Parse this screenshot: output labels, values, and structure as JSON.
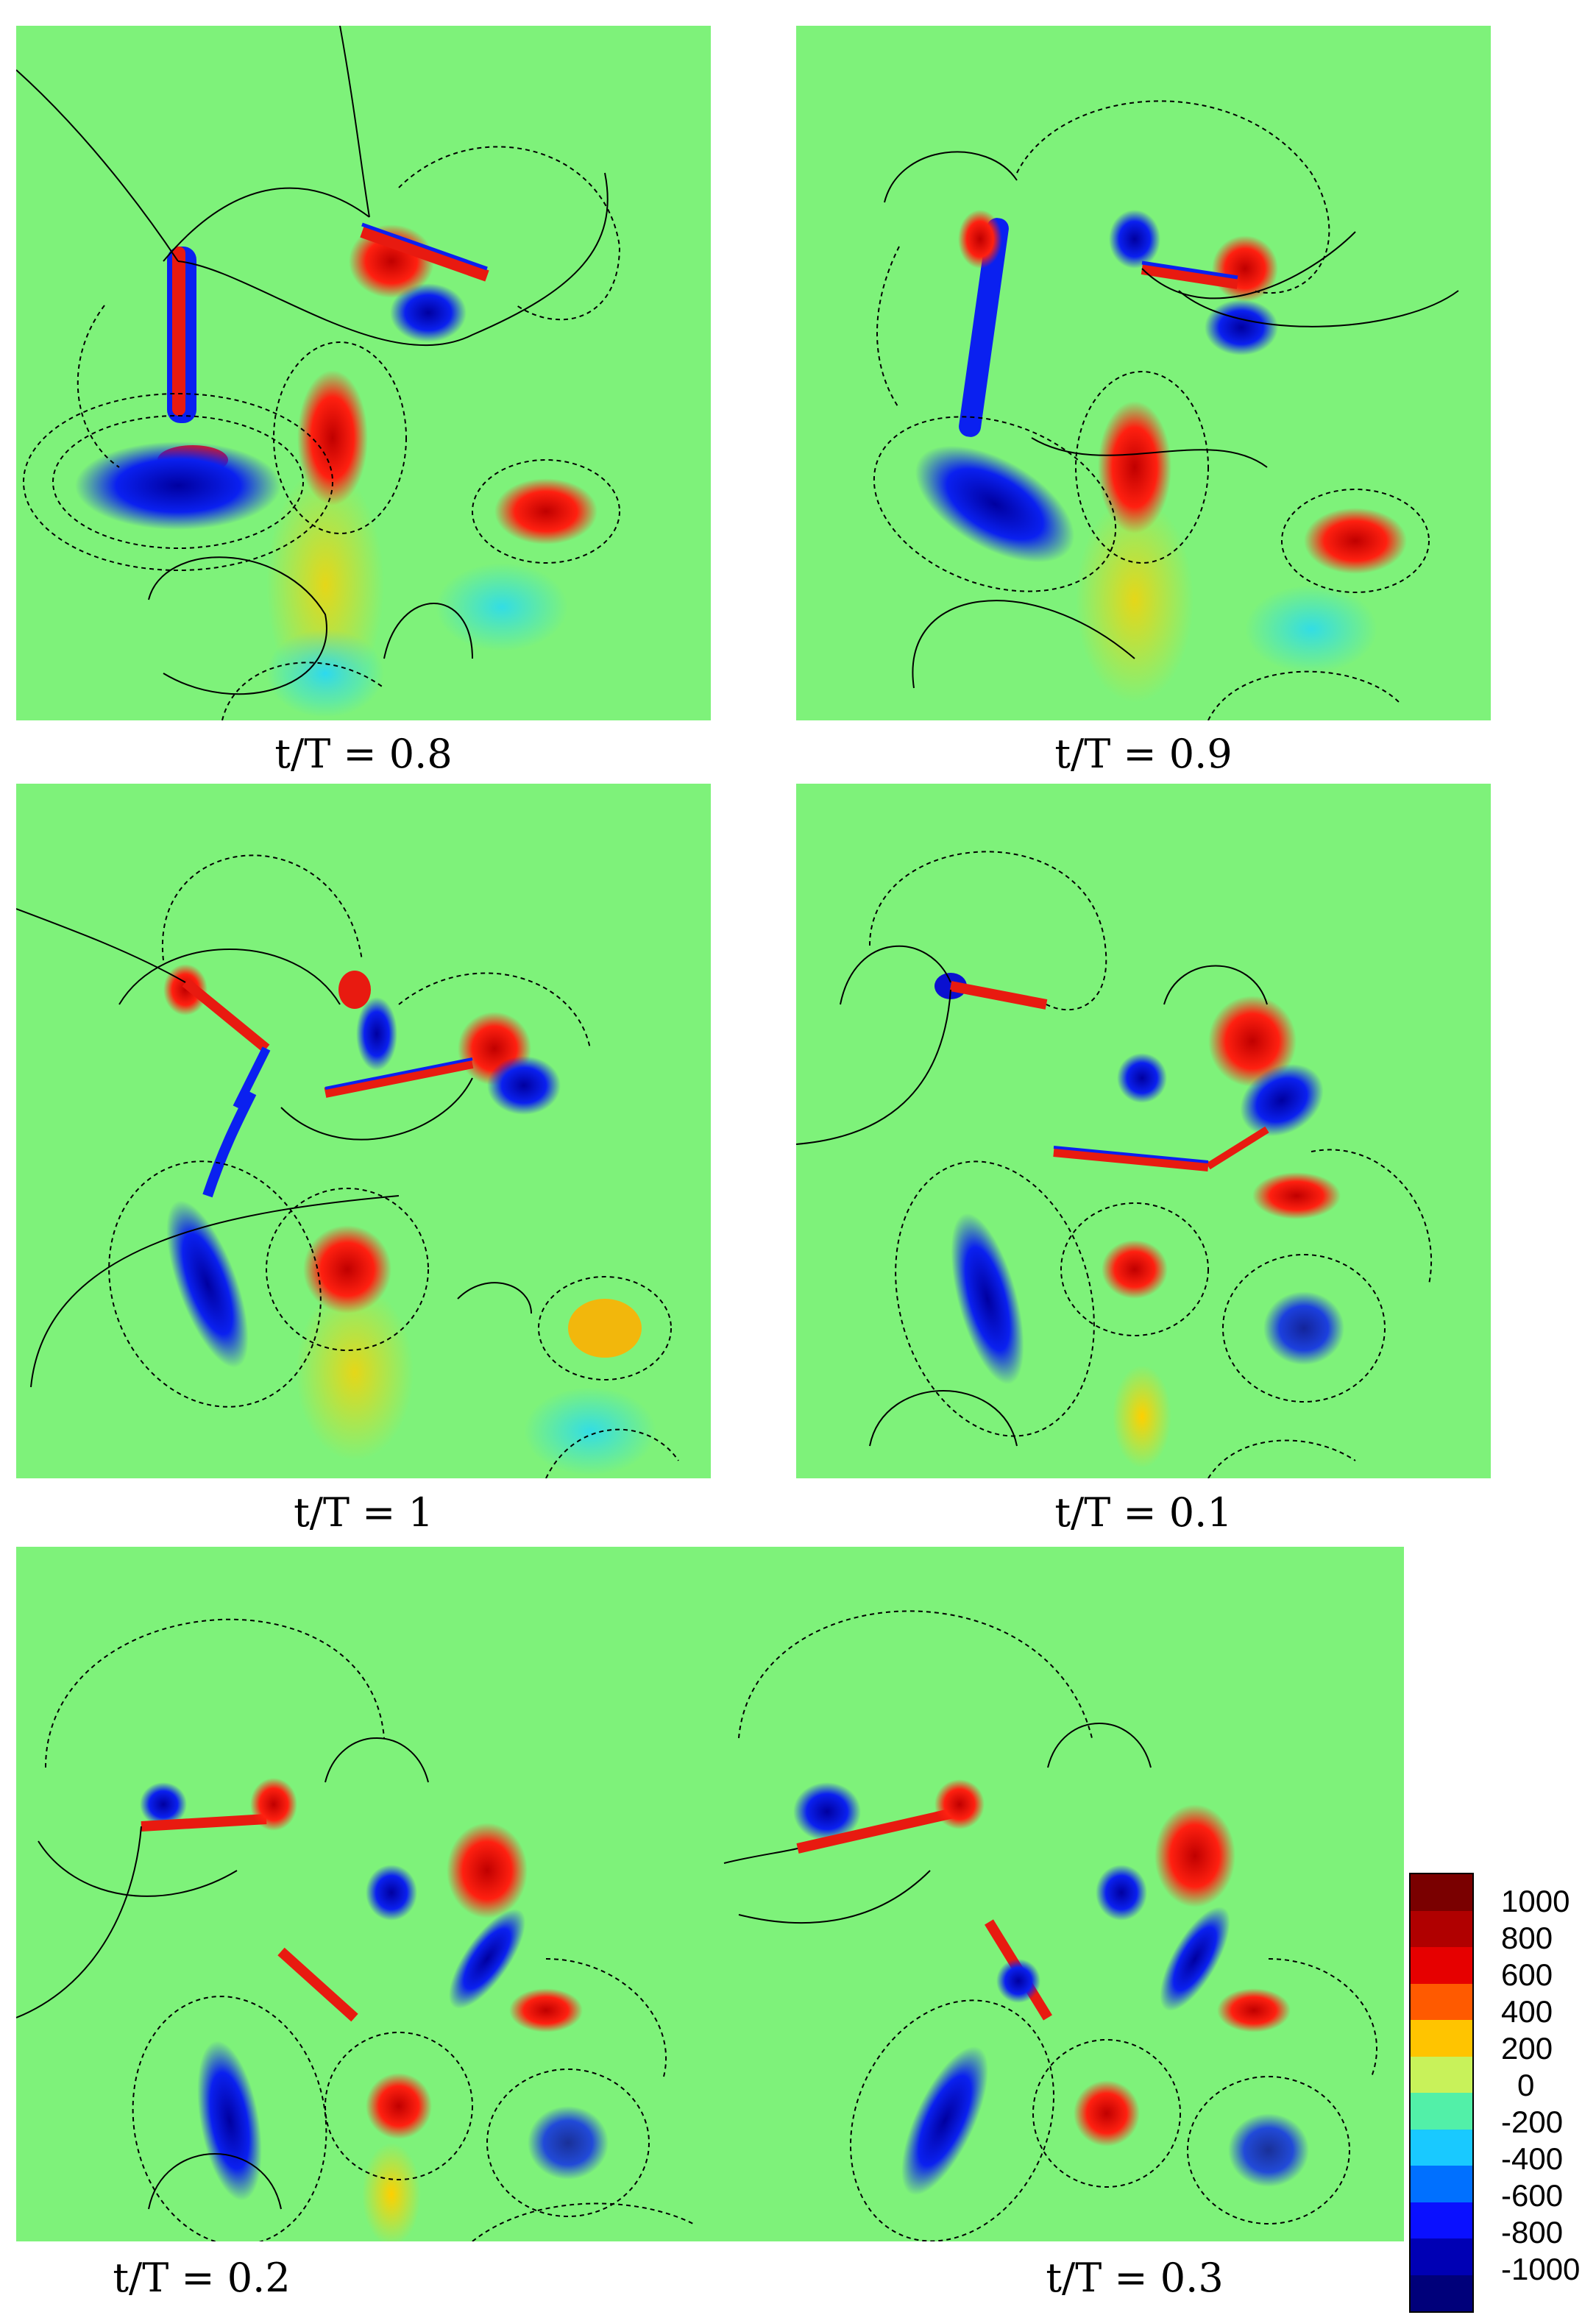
{
  "panels": [
    {
      "id": "p1",
      "caption": "t/T = 0.8"
    },
    {
      "id": "p2",
      "caption": "t/T = 0.9"
    },
    {
      "id": "p3",
      "caption": "t/T = 1"
    },
    {
      "id": "p4",
      "caption": "t/T = 0.1"
    },
    {
      "id": "p5",
      "caption": "t/T = 0.2"
    },
    {
      "id": "p6",
      "caption": "t/T = 0.3"
    }
  ],
  "colorbar": {
    "labels": [
      "1000",
      "800",
      "600",
      "400",
      "200",
      "0",
      "-200",
      "-400",
      "-600",
      "-800",
      "-1000"
    ],
    "colors": [
      "#7a0000",
      "#b00000",
      "#e60000",
      "#ff5a00",
      "#ffc400",
      "#c8f25a",
      "#52f0a8",
      "#19c9ff",
      "#0070ff",
      "#0a10ff",
      "#0000b4",
      "#00007a"
    ]
  },
  "colors": {
    "background": "#7ef27a",
    "positive_vortex": "#e81a10",
    "negative_vortex": "#0a1ee6",
    "contour": "#000000"
  }
}
